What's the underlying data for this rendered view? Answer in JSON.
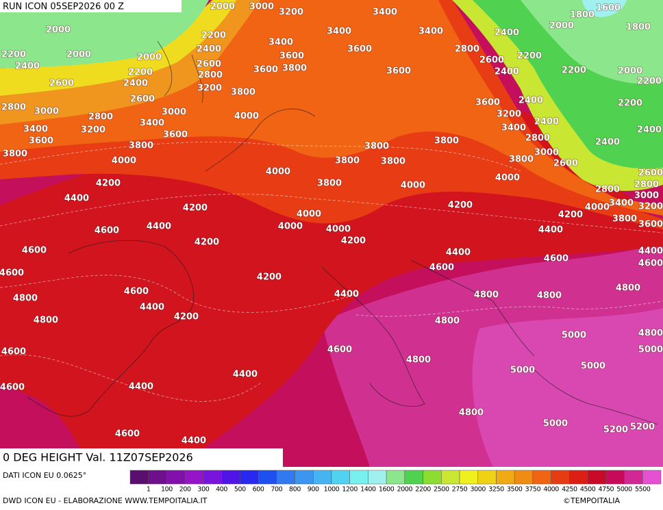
{
  "header": {
    "run": "RUN ICON 05SEP2026 00 Z"
  },
  "title": "0 DEG HEIGHT Val. 11Z07SEP2026",
  "source": "DATI ICON EU 0.0625°",
  "legend": {
    "colors": [
      "#5a0f6e",
      "#6e0f8c",
      "#8210aa",
      "#9614c8",
      "#7814dc",
      "#5014e6",
      "#2828f0",
      "#1e50f0",
      "#3278f0",
      "#3c96f0",
      "#46b4f0",
      "#50d2f0",
      "#78f0f0",
      "#a0f0f0",
      "#8ce68c",
      "#50d250",
      "#8cdc32",
      "#c8e632",
      "#f0f01e",
      "#f0d214",
      "#f0aa14",
      "#f08c14",
      "#f06414",
      "#e63c14",
      "#dc1e14",
      "#c80a28",
      "#c80a5a",
      "#d22896",
      "#e650d2"
    ],
    "labels": [
      "1",
      "100",
      "200",
      "300",
      "400",
      "500",
      "600",
      "700",
      "800",
      "900",
      "1000",
      "1200",
      "1400",
      "1600",
      "2000",
      "2200",
      "2500",
      "2750",
      "3000",
      "3250",
      "3500",
      "3750",
      "4000",
      "4250",
      "4500",
      "4750",
      "5000",
      "5500"
    ]
  },
  "contour_labels": [
    "2000",
    "3000",
    "3200",
    "3400",
    "1800",
    "1600",
    "2000",
    "2200",
    "3400",
    "3400",
    "2400",
    "2000",
    "1800",
    "2200",
    "2000",
    "2000",
    "2400",
    "3400",
    "3600",
    "3600",
    "2800",
    "2200",
    "2400",
    "2200",
    "2600",
    "2800",
    "3600",
    "3800",
    "3600",
    "2600",
    "2400",
    "2200",
    "2000",
    "2200",
    "2600",
    "2400",
    "3200",
    "3800",
    "2600",
    "2800",
    "3000",
    "2800",
    "3000",
    "4000",
    "3600",
    "2400",
    "2200",
    "3200",
    "3400",
    "3200",
    "3400",
    "3400",
    "2400",
    "2400",
    "3600",
    "3600",
    "3800",
    "2800",
    "3800",
    "3800",
    "2400",
    "3800",
    "4000",
    "3000",
    "3800",
    "3800",
    "3800",
    "2600",
    "4000",
    "2600",
    "4000",
    "4200",
    "3800",
    "4000",
    "2800",
    "2800",
    "4400",
    "3000",
    "3400",
    "4200",
    "4000",
    "3200",
    "4200",
    "4000",
    "4200",
    "3800",
    "4600",
    "4400",
    "4000",
    "4000",
    "4400",
    "3600",
    "4200",
    "4200",
    "4600",
    "4400",
    "4400",
    "4600",
    "4600",
    "4600",
    "4600",
    "4200",
    "4600",
    "4400",
    "4800",
    "4800",
    "4800",
    "4800",
    "4400",
    "4200",
    "4800",
    "4800",
    "4800",
    "5000",
    "4600",
    "4600",
    "4800",
    "5000",
    "5000",
    "5000",
    "4400",
    "4400",
    "4600",
    "4800",
    "5000",
    "5200",
    "5200",
    "4600",
    "4400"
  ],
  "footer": {
    "credit": "DWD ICON EU - ELABORAZIONE WWW.TEMPOITALIA.IT",
    "copyright": "©TEMPOITALIA"
  }
}
